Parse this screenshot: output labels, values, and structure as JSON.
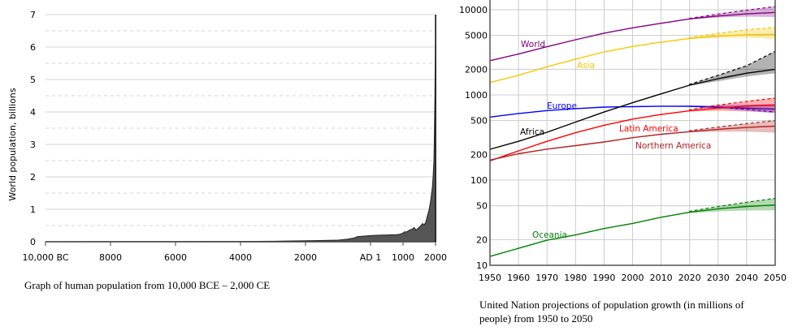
{
  "chart_data": [
    {
      "type": "area",
      "title": "",
      "ylabel": "World population, billions",
      "xlabel": "",
      "xlim": [
        -10000,
        2000
      ],
      "ylim": [
        0,
        7
      ],
      "grid": true,
      "xticks": [
        {
          "v": -10000,
          "label": "10,000 BC"
        },
        {
          "v": -8000,
          "label": "8000"
        },
        {
          "v": -6000,
          "label": "6000"
        },
        {
          "v": -4000,
          "label": "4000"
        },
        {
          "v": -2000,
          "label": "2000"
        },
        {
          "v": 1,
          "label": "AD 1"
        },
        {
          "v": 1000,
          "label": "1000"
        },
        {
          "v": 2000,
          "label": "2000"
        }
      ],
      "yticks": [
        0,
        1,
        2,
        3,
        4,
        5,
        6,
        7
      ],
      "x": [
        -10000,
        -8000,
        -6000,
        -4000,
        -3000,
        -2000,
        -1000,
        -700,
        -500,
        -400,
        1,
        200,
        500,
        800,
        900,
        1000,
        1050,
        1100,
        1200,
        1250,
        1300,
        1340,
        1400,
        1500,
        1550,
        1600,
        1650,
        1700,
        1750,
        1800,
        1850,
        1900,
        1925,
        1950,
        1960,
        1970,
        1980,
        1990,
        2000,
        2011
      ],
      "values": [
        0.002,
        0.005,
        0.007,
        0.01,
        0.015,
        0.03,
        0.05,
        0.08,
        0.12,
        0.16,
        0.19,
        0.2,
        0.21,
        0.22,
        0.23,
        0.27,
        0.31,
        0.3,
        0.36,
        0.38,
        0.4,
        0.44,
        0.36,
        0.45,
        0.5,
        0.56,
        0.52,
        0.6,
        0.8,
        0.98,
        1.26,
        1.65,
        2.0,
        2.5,
        3.0,
        3.7,
        4.4,
        5.3,
        6.1,
        7.0
      ]
    },
    {
      "type": "line",
      "title": "",
      "xlabel": "",
      "ylabel": "",
      "yscale": "log",
      "xlim": [
        1950,
        2050
      ],
      "ylim": [
        10,
        13000
      ],
      "grid": true,
      "x": [
        1950,
        1960,
        1970,
        1980,
        1990,
        2000,
        2010,
        2020,
        2030,
        2040,
        2050
      ],
      "xticks": [
        1950,
        1960,
        1970,
        1980,
        1990,
        2000,
        2010,
        2020,
        2030,
        2040,
        2050
      ],
      "yticks": [
        10,
        20,
        50,
        100,
        200,
        500,
        1000,
        2000,
        5000,
        10000
      ],
      "projection_x": [
        2020,
        2030,
        2040,
        2050
      ],
      "series": [
        {
          "name": "World",
          "color": "#800080",
          "values": [
            2525,
            3018,
            3682,
            4440,
            5310,
            6127,
            6930,
            7800,
            8450,
            8950,
            9300
          ],
          "high": [
            7900,
            8900,
            9900,
            10900
          ],
          "low": [
            7700,
            8100,
            8300,
            8200
          ]
        },
        {
          "name": "Asia",
          "color": "#f5c800",
          "values": [
            1400,
            1700,
            2140,
            2630,
            3200,
            3700,
            4170,
            4600,
            4900,
            5100,
            5150
          ],
          "high": [
            4700,
            5300,
            5800,
            6200
          ],
          "low": [
            4550,
            4650,
            4700,
            4500
          ]
        },
        {
          "name": "Europe",
          "color": "#0000ff",
          "values": [
            550,
            605,
            655,
            690,
            720,
            727,
            738,
            735,
            720,
            700,
            680
          ],
          "high": [
            745,
            760,
            770,
            780
          ],
          "low": [
            725,
            690,
            650,
            610
          ],
          "dashed": [
            735,
            715,
            680,
            630
          ]
        },
        {
          "name": "Africa",
          "color": "#000000",
          "values": [
            230,
            285,
            365,
            480,
            630,
            810,
            1030,
            1300,
            1550,
            1800,
            2000
          ],
          "high": [
            1330,
            1700,
            2200,
            3250
          ],
          "low": [
            1280,
            1450,
            1650,
            1800
          ]
        },
        {
          "name": "Latin America",
          "color": "#ff0000",
          "values": [
            168,
            220,
            285,
            360,
            440,
            520,
            590,
            650,
            700,
            740,
            760
          ],
          "high": [
            670,
            760,
            840,
            920
          ],
          "low": [
            640,
            650,
            640,
            620
          ]
        },
        {
          "name": "Northern America",
          "color": "#b22222",
          "values": [
            172,
            204,
            231,
            254,
            280,
            315,
            345,
            370,
            395,
            415,
            430
          ],
          "high": [
            380,
            420,
            460,
            500
          ],
          "low": [
            362,
            370,
            370,
            360
          ]
        },
        {
          "name": "Oceania",
          "color": "#008000",
          "values": [
            12.7,
            15.8,
            19.7,
            22.7,
            27,
            31,
            36.6,
            42,
            46,
            49,
            51
          ],
          "high": [
            43,
            49,
            55,
            61
          ],
          "low": [
            41,
            43,
            44,
            44
          ]
        }
      ]
    }
  ],
  "captions": {
    "left": "Graph of human population from 10,000 BCE – 2,000 CE",
    "right": "United Nation projections of population growth (in millions of people) from 1950 to 2050"
  }
}
